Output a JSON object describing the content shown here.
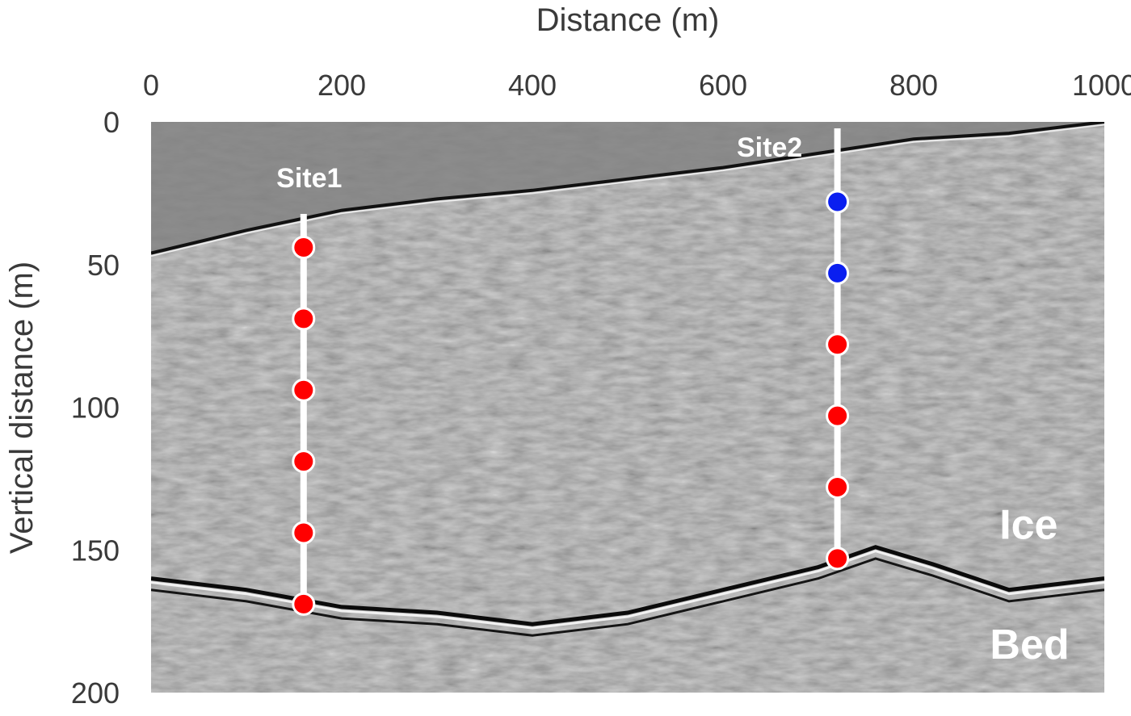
{
  "chart_data": {
    "type": "scatter",
    "title": "",
    "xlabel": "Distance (m)",
    "ylabel": "Vertical distance (m)",
    "x_axis_position": "top",
    "y_axis_reversed": true,
    "xlim": [
      0,
      1000
    ],
    "ylim": [
      0,
      200
    ],
    "x_ticks": [
      "0",
      "200",
      "400",
      "600",
      "800",
      "1000"
    ],
    "y_ticks": [
      "0",
      "50",
      "100",
      "150",
      "200"
    ],
    "grid": false,
    "legend": "none",
    "background": "grayscale radar section",
    "sites": [
      {
        "name": "Site1",
        "x": 160,
        "line_top": 30,
        "line_bottom": 170,
        "points": [
          {
            "depth": 44,
            "color": "#ff0000"
          },
          {
            "depth": 69,
            "color": "#ff0000"
          },
          {
            "depth": 94,
            "color": "#ff0000"
          },
          {
            "depth": 119,
            "color": "#ff0000"
          },
          {
            "depth": 144,
            "color": "#ff0000"
          },
          {
            "depth": 169,
            "color": "#ff0000"
          }
        ]
      },
      {
        "name": "Site2",
        "x": 720,
        "line_top": 0,
        "line_bottom": 153,
        "points": [
          {
            "depth": 28,
            "color": "#0a1ef0"
          },
          {
            "depth": 53,
            "color": "#0a1ef0"
          },
          {
            "depth": 78,
            "color": "#ff0000"
          },
          {
            "depth": 103,
            "color": "#ff0000"
          },
          {
            "depth": 128,
            "color": "#ff0000"
          },
          {
            "depth": 153,
            "color": "#ff0000"
          }
        ]
      }
    ],
    "annotations": [
      {
        "text": "Ice",
        "x": 890,
        "y": 141
      },
      {
        "text": "Bed",
        "x": 880,
        "y": 183
      }
    ],
    "surface_reflector": [
      [
        0,
        46
      ],
      [
        100,
        38
      ],
      [
        200,
        31
      ],
      [
        300,
        27
      ],
      [
        400,
        24
      ],
      [
        500,
        20
      ],
      [
        600,
        16
      ],
      [
        700,
        11
      ],
      [
        800,
        6
      ],
      [
        900,
        4
      ],
      [
        1000,
        0
      ]
    ],
    "bed_reflector": [
      [
        0,
        160
      ],
      [
        100,
        164
      ],
      [
        200,
        170
      ],
      [
        300,
        172
      ],
      [
        400,
        176
      ],
      [
        500,
        172
      ],
      [
        600,
        164
      ],
      [
        700,
        156
      ],
      [
        760,
        149
      ],
      [
        820,
        155
      ],
      [
        900,
        164
      ],
      [
        1000,
        160
      ]
    ]
  }
}
